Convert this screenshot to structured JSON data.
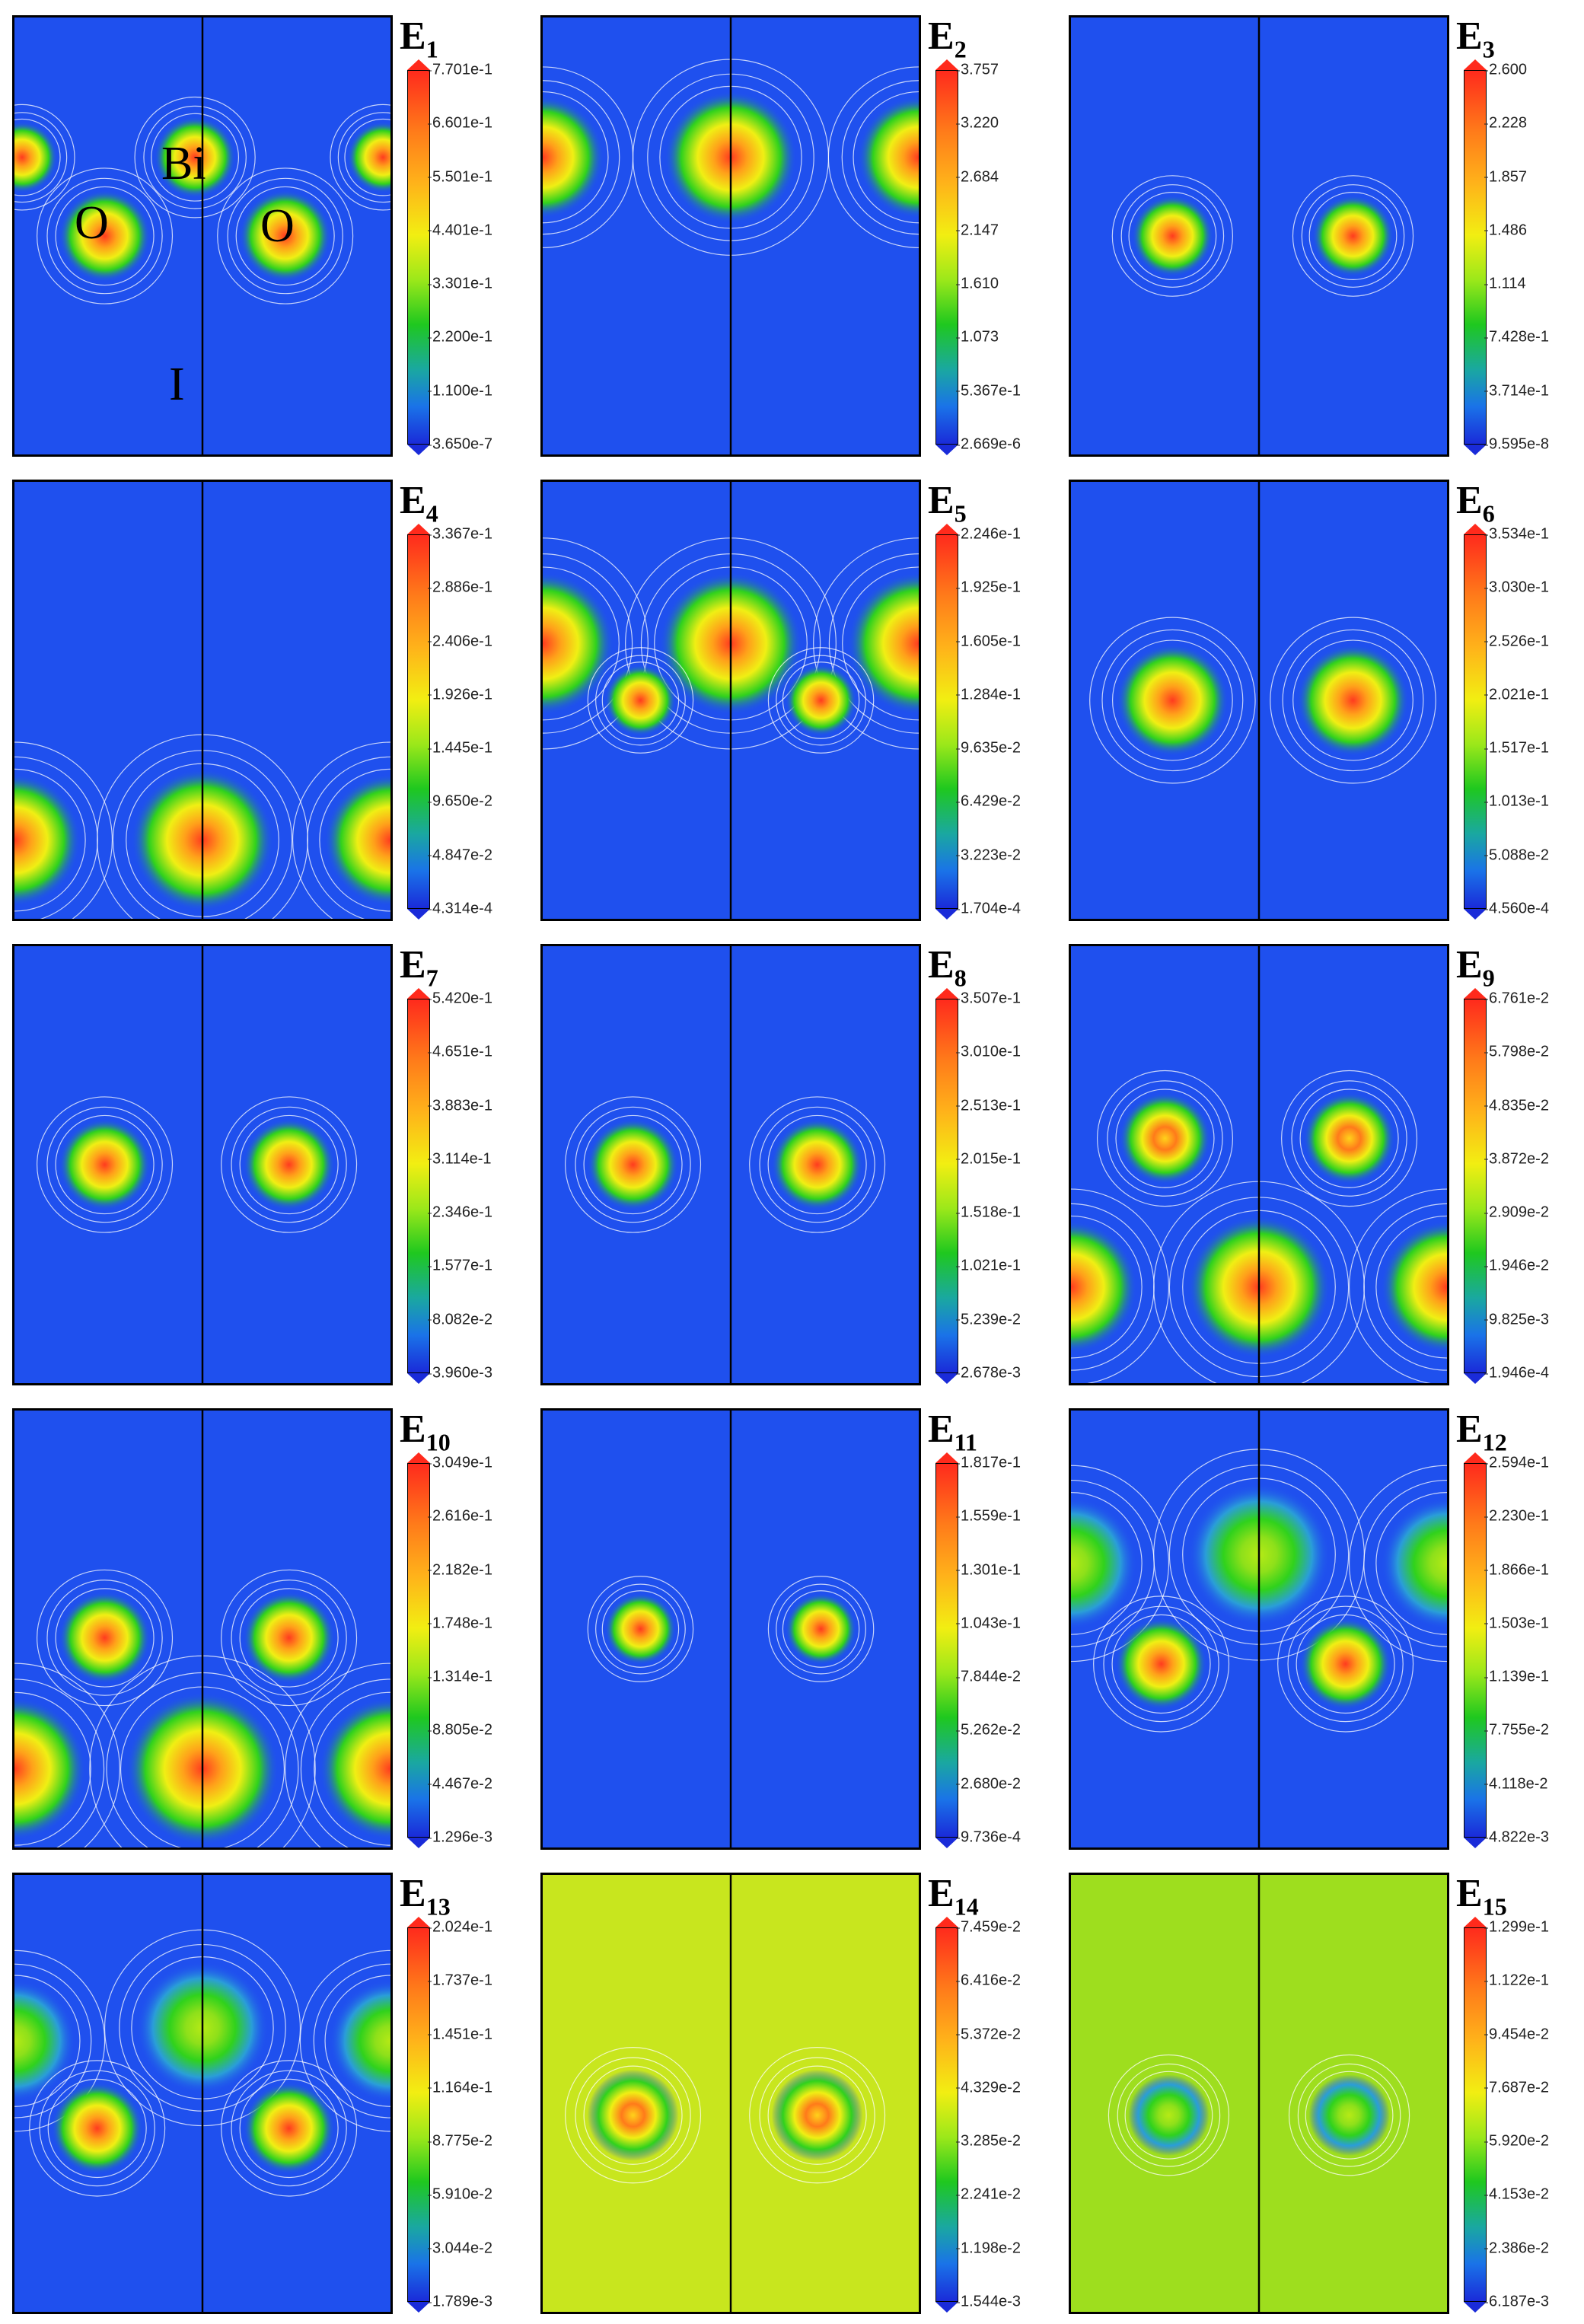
{
  "colors": {
    "background": "#1f50ee",
    "contour": "#ffffff",
    "axis_line": "#000000"
  },
  "chart_data": [
    {
      "type": "heatmap",
      "title": "E",
      "subscript": "1",
      "colorbar_ticks": [
        "7.701e-1",
        "6.601e-1",
        "5.501e-1",
        "4.401e-1",
        "3.301e-1",
        "2.200e-1",
        "1.100e-1",
        "3.650e-7"
      ],
      "atom_labels": [
        "Bi",
        "O",
        "O",
        "I"
      ]
    },
    {
      "type": "heatmap",
      "title": "E",
      "subscript": "2",
      "colorbar_ticks": [
        "3.757",
        "3.220",
        "2.684",
        "2.147",
        "1.610",
        "1.073",
        "5.367e-1",
        "2.669e-6"
      ]
    },
    {
      "type": "heatmap",
      "title": "E",
      "subscript": "3",
      "colorbar_ticks": [
        "2.600",
        "2.228",
        "1.857",
        "1.486",
        "1.114",
        "7.428e-1",
        "3.714e-1",
        "9.595e-8"
      ]
    },
    {
      "type": "heatmap",
      "title": "E",
      "subscript": "4",
      "colorbar_ticks": [
        "3.367e-1",
        "2.886e-1",
        "2.406e-1",
        "1.926e-1",
        "1.445e-1",
        "9.650e-2",
        "4.847e-2",
        "4.314e-4"
      ]
    },
    {
      "type": "heatmap",
      "title": "E",
      "subscript": "5",
      "colorbar_ticks": [
        "2.246e-1",
        "1.925e-1",
        "1.605e-1",
        "1.284e-1",
        "9.635e-2",
        "6.429e-2",
        "3.223e-2",
        "1.704e-4"
      ]
    },
    {
      "type": "heatmap",
      "title": "E",
      "subscript": "6",
      "colorbar_ticks": [
        "3.534e-1",
        "3.030e-1",
        "2.526e-1",
        "2.021e-1",
        "1.517e-1",
        "1.013e-1",
        "5.088e-2",
        "4.560e-4"
      ]
    },
    {
      "type": "heatmap",
      "title": "E",
      "subscript": "7",
      "colorbar_ticks": [
        "5.420e-1",
        "4.651e-1",
        "3.883e-1",
        "3.114e-1",
        "2.346e-1",
        "1.577e-1",
        "8.082e-2",
        "3.960e-3"
      ]
    },
    {
      "type": "heatmap",
      "title": "E",
      "subscript": "8",
      "colorbar_ticks": [
        "3.507e-1",
        "3.010e-1",
        "2.513e-1",
        "2.015e-1",
        "1.518e-1",
        "1.021e-1",
        "5.239e-2",
        "2.678e-3"
      ]
    },
    {
      "type": "heatmap",
      "title": "E",
      "subscript": "9",
      "colorbar_ticks": [
        "6.761e-2",
        "5.798e-2",
        "4.835e-2",
        "3.872e-2",
        "2.909e-2",
        "1.946e-2",
        "9.825e-3",
        "1.946e-4"
      ]
    },
    {
      "type": "heatmap",
      "title": "E",
      "subscript": "10",
      "colorbar_ticks": [
        "3.049e-1",
        "2.616e-1",
        "2.182e-1",
        "1.748e-1",
        "1.314e-1",
        "8.805e-2",
        "4.467e-2",
        "1.296e-3"
      ]
    },
    {
      "type": "heatmap",
      "title": "E",
      "subscript": "11",
      "colorbar_ticks": [
        "1.817e-1",
        "1.559e-1",
        "1.301e-1",
        "1.043e-1",
        "7.844e-2",
        "5.262e-2",
        "2.680e-2",
        "9.736e-4"
      ]
    },
    {
      "type": "heatmap",
      "title": "E",
      "subscript": "12",
      "colorbar_ticks": [
        "2.594e-1",
        "2.230e-1",
        "1.866e-1",
        "1.503e-1",
        "1.139e-1",
        "7.755e-2",
        "4.118e-2",
        "4.822e-3"
      ]
    },
    {
      "type": "heatmap",
      "title": "E",
      "subscript": "13",
      "colorbar_ticks": [
        "2.024e-1",
        "1.737e-1",
        "1.451e-1",
        "1.164e-1",
        "8.775e-2",
        "5.910e-2",
        "3.044e-2",
        "1.789e-3"
      ]
    },
    {
      "type": "heatmap",
      "title": "E",
      "subscript": "14",
      "colorbar_ticks": [
        "7.459e-2",
        "6.416e-2",
        "5.372e-2",
        "4.329e-2",
        "3.285e-2",
        "2.241e-2",
        "1.198e-2",
        "1.544e-3"
      ]
    },
    {
      "type": "heatmap",
      "title": "E",
      "subscript": "15",
      "colorbar_ticks": [
        "1.299e-1",
        "1.122e-1",
        "9.454e-2",
        "7.687e-2",
        "5.920e-2",
        "4.153e-2",
        "2.386e-2",
        "6.187e-3"
      ]
    }
  ]
}
